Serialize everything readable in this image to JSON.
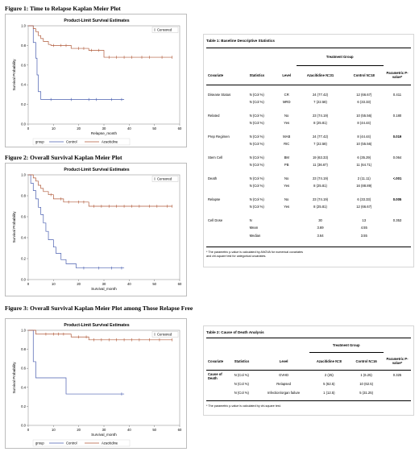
{
  "figures": [
    {
      "caption": "Figure 1: Time to Relapse Kaplan Meier Plot",
      "plot_title": "Product-Limit Survival Estimates",
      "legend_censored": "Censored",
      "ylabel": "Survival Probability",
      "xlabel": "Relapse_month",
      "show_group_legend": true,
      "group_legend": {
        "label": "group",
        "control": "Control",
        "aza": "Azacitidine"
      }
    },
    {
      "caption": "Figure 2: Overall Survival Kaplan Meier Plot",
      "plot_title": "Product-Limit Survival Estimates",
      "legend_censored": "Censored",
      "ylabel": "Survival Probability",
      "xlabel": "Survival_month",
      "show_group_legend": false,
      "group_legend": {
        "label": "",
        "control": "",
        "aza": ""
      }
    },
    {
      "caption": "Figure 3: Overall Survival Kaplan Meier Plot among Those Relapse Free",
      "plot_title": "Product-Limit Survival Estimates",
      "legend_censored": "Censored",
      "ylabel": "Survival Probability",
      "xlabel": "Survival_month",
      "show_group_legend": true,
      "group_legend": {
        "label": "group",
        "control": "Control",
        "aza": "Azacitidine"
      }
    }
  ],
  "chart_data": [
    {
      "type": "line",
      "title": "Product-Limit Survival Estimates",
      "xlabel": "Relapse_month",
      "ylabel": "Survival Probability",
      "xlim": [
        0,
        60
      ],
      "ylim": [
        0,
        1
      ],
      "xticks": [
        "0",
        "10",
        "20",
        "30",
        "40",
        "50",
        "60"
      ],
      "yticks": [
        "0.0",
        "0.2",
        "0.4",
        "0.6",
        "0.8",
        "1.0"
      ],
      "grid": false,
      "series": [
        {
          "name": "Control",
          "step": true,
          "color": "#4a5fb0",
          "x": [
            0,
            2,
            3,
            3.5,
            4,
            5,
            38
          ],
          "y": [
            1.0,
            0.83,
            0.67,
            0.5,
            0.33,
            0.25,
            0.25
          ],
          "censored_x": [
            9,
            17,
            24,
            27,
            33,
            37
          ]
        },
        {
          "name": "Azacitidine",
          "step": true,
          "color": "#b05a3a",
          "x": [
            0,
            2,
            3,
            4,
            5,
            6,
            8,
            9,
            12,
            17,
            24,
            30,
            38,
            57
          ],
          "y": [
            1.0,
            0.97,
            0.94,
            0.9,
            0.87,
            0.84,
            0.81,
            0.8,
            0.8,
            0.77,
            0.75,
            0.68,
            0.68,
            0.68
          ],
          "censored_x": [
            10,
            13,
            15,
            20,
            22,
            25,
            28,
            32,
            35,
            38,
            41,
            45,
            48,
            53,
            57
          ]
        }
      ]
    },
    {
      "type": "line",
      "title": "Product-Limit Survival Estimates",
      "xlabel": "Survival_month",
      "ylabel": "Survival Probability",
      "xlim": [
        0,
        60
      ],
      "ylim": [
        0,
        1
      ],
      "xticks": [
        "0",
        "10",
        "20",
        "30",
        "40",
        "50",
        "60"
      ],
      "yticks": [
        "0.0",
        "0.2",
        "0.4",
        "0.6",
        "0.8",
        "1.0"
      ],
      "grid": false,
      "series": [
        {
          "name": "Control",
          "step": true,
          "color": "#4a5fb0",
          "x": [
            0,
            1,
            2,
            3,
            4,
            5,
            6,
            7,
            8,
            10,
            11,
            13,
            15,
            19,
            38
          ],
          "y": [
            1.0,
            0.92,
            0.85,
            0.77,
            0.69,
            0.62,
            0.54,
            0.46,
            0.38,
            0.31,
            0.25,
            0.19,
            0.15,
            0.11,
            0.11
          ],
          "censored_x": [
            22,
            28,
            33,
            37
          ]
        },
        {
          "name": "Azacitidine",
          "step": true,
          "color": "#b05a3a",
          "x": [
            0,
            2,
            3,
            4,
            5,
            6,
            8,
            10,
            12,
            14,
            17,
            24,
            27,
            57
          ],
          "y": [
            1.0,
            0.97,
            0.94,
            0.9,
            0.87,
            0.84,
            0.81,
            0.77,
            0.77,
            0.74,
            0.74,
            0.7,
            0.7,
            0.7
          ],
          "censored_x": [
            9,
            13,
            16,
            20,
            22,
            26,
            29,
            32,
            35,
            38,
            41,
            44,
            48,
            51,
            55,
            57
          ]
        }
      ]
    },
    {
      "type": "line",
      "title": "Product-Limit Survival Estimates",
      "xlabel": "Survival_month",
      "ylabel": "Survival Probability",
      "xlim": [
        0,
        60
      ],
      "ylim": [
        0,
        1
      ],
      "xticks": [
        "0",
        "10",
        "20",
        "30",
        "40",
        "50",
        "60"
      ],
      "yticks": [
        "0.0",
        "0.2",
        "0.4",
        "0.6",
        "0.8",
        "1.0"
      ],
      "grid": false,
      "series": [
        {
          "name": "Control",
          "step": true,
          "color": "#4a5fb0",
          "x": [
            0,
            2,
            3,
            15,
            38
          ],
          "y": [
            1.0,
            0.67,
            0.5,
            0.33,
            0.33
          ],
          "censored_x": [
            37
          ]
        },
        {
          "name": "Azacitidine",
          "step": true,
          "color": "#b05a3a",
          "x": [
            0,
            3,
            17,
            24,
            57
          ],
          "y": [
            1.0,
            0.96,
            0.93,
            0.9,
            0.9
          ],
          "censored_x": [
            7,
            10,
            12,
            14,
            20,
            23,
            26,
            29,
            32,
            35,
            38,
            41,
            44,
            48,
            52,
            57
          ]
        }
      ]
    }
  ],
  "table1": {
    "title": "Table 1: Baseline Descriptive Statistics",
    "treatment_group": "Treatment Group",
    "headers": {
      "covariate": "Covariate",
      "statistics": "Statistics",
      "level": "Level",
      "aza": "Azacitidine N=31",
      "control": "Control N=18",
      "pvalue": "Parametric P-value*"
    },
    "groups": [
      {
        "covariate": "Disease Status",
        "pvalue": "0.411",
        "bold": false,
        "rows": [
          {
            "stat": "N (Col %)",
            "level": "CR",
            "aza": "24 (77.42)",
            "control": "12 (66.67)"
          },
          {
            "stat": "N (Col %)",
            "level": "MRD",
            "aza": "7 (22.58)",
            "control": "6 (33.33)"
          }
        ]
      },
      {
        "covariate": "Related",
        "pvalue": "0.180",
        "bold": false,
        "rows": [
          {
            "stat": "N (Col %)",
            "level": "No",
            "aza": "23 (74.19)",
            "control": "10 (55.56)"
          },
          {
            "stat": "N (Col %)",
            "level": "Yes",
            "aza": "8 (25.81)",
            "control": "8 (44.44)"
          }
        ]
      },
      {
        "covariate": "Prep Regimen",
        "pvalue": "0.019",
        "bold": true,
        "rows": [
          {
            "stat": "N (Col %)",
            "level": "MAB",
            "aza": "24 (77.42)",
            "control": "8 (44.44)"
          },
          {
            "stat": "N (Col %)",
            "level": "RIC",
            "aza": "7 (22.58)",
            "control": "10 (55.56)"
          }
        ]
      },
      {
        "covariate": "Stem Cell",
        "pvalue": "0.064",
        "bold": false,
        "rows": [
          {
            "stat": "N (Col %)",
            "level": "BM",
            "aza": "19 (63.33)",
            "control": "6 (35.29)"
          },
          {
            "stat": "N (Col %)",
            "level": "PB",
            "aza": "11 (36.67)",
            "control": "11 (64.71)"
          }
        ]
      },
      {
        "covariate": "Death",
        "pvalue": "<.001",
        "bold": true,
        "rows": [
          {
            "stat": "N (Col %)",
            "level": "No",
            "aza": "23 (74.19)",
            "control": "2 (11.11)"
          },
          {
            "stat": "N (Col %)",
            "level": "Yes",
            "aza": "8 (25.81)",
            "control": "16 (88.89)"
          }
        ]
      },
      {
        "covariate": "Relapse",
        "pvalue": "0.005",
        "bold": true,
        "rows": [
          {
            "stat": "N (Col %)",
            "level": "No",
            "aza": "23 (74.19)",
            "control": "6 (33.33)"
          },
          {
            "stat": "N (Col %)",
            "level": "Yes",
            "aza": "8 (25.81)",
            "control": "12 (66.67)"
          }
        ]
      },
      {
        "covariate": "Cell Dose",
        "pvalue": "0.353",
        "bold": false,
        "rows": [
          {
            "stat": "N",
            "level": "",
            "aza": "30",
            "control": "13"
          },
          {
            "stat": "Mean",
            "level": "",
            "aza": "3.69",
            "control": "4.55"
          },
          {
            "stat": "Median",
            "level": "",
            "aza": "3.64",
            "control": "3.55"
          }
        ]
      }
    ],
    "footnote_line1": "* The parametric p-value is calculated by ANOVA for numerical covariates",
    "footnote_line2": "and chi-square test for categorical covariates."
  },
  "table2": {
    "title": "Table 2:   Cause of Death Analysis",
    "treatment_group": "Treatment Group",
    "headers": {
      "covariate": "Covariate",
      "statistics": "Statistics",
      "level": "Level",
      "aza": "Azacitidine N=8",
      "control": "Control N=16",
      "pvalue": "Parametric P-value*"
    },
    "covariate_line1": "Cause of",
    "covariate_line2": "Death",
    "pvalue": "0.325",
    "rows": [
      {
        "stat": "N (Col %)",
        "level": "GVHD",
        "aza": "2 (25)",
        "control": "1 (6.25)"
      },
      {
        "stat": "N (Col %)",
        "level": "Relapsed",
        "aza": "5 (62.5)",
        "control": "10 (62.5)"
      },
      {
        "stat": "N (Col %)",
        "level": "Infection/organ failure",
        "aza": "1 (12.5)",
        "control": "5 (31.25)"
      }
    ],
    "footnote": "* The parametric p-value is calculated by chi-square test."
  }
}
